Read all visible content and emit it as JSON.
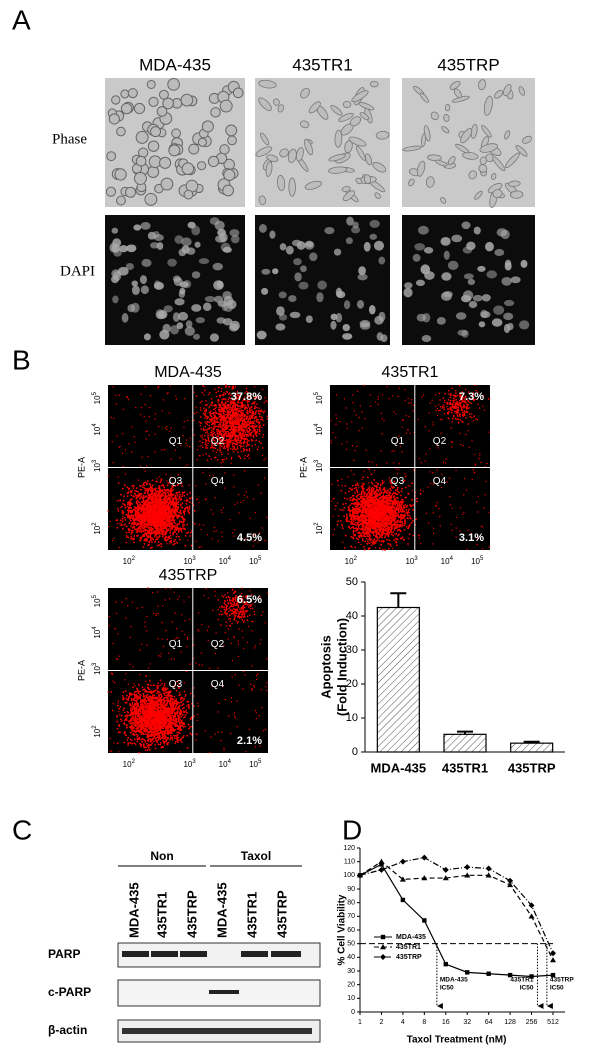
{
  "panel_labels": [
    "A",
    "B",
    "C",
    "D"
  ],
  "panel_a": {
    "columns": [
      "MDA-435",
      "435TR1",
      "435TRP"
    ],
    "rows": [
      "Phase",
      "DAPI"
    ]
  },
  "panel_b": {
    "flow_plots": [
      {
        "title": "MDA-435",
        "upper_right": "37.8%",
        "lower_right": "4.5%"
      },
      {
        "title": "435TR1",
        "upper_right": "7.3%",
        "lower_right": "3.1%"
      },
      {
        "title": "435TRP",
        "upper_right": "6.5%",
        "lower_right": "2.1%"
      }
    ],
    "quadrants": [
      "Q1",
      "Q2",
      "Q3",
      "Q4"
    ],
    "y_axis_label": "PE-A",
    "ticks": [
      {
        "base": "10",
        "exp": "2"
      },
      {
        "base": "10",
        "exp": "3"
      },
      {
        "base": "10",
        "exp": "4"
      },
      {
        "base": "10",
        "exp": "5"
      }
    ]
  },
  "panel_c": {
    "groups": [
      "Non",
      "Taxol"
    ],
    "lanes": [
      "MDA-435",
      "435TR1",
      "435TRP",
      "MDA-435",
      "435TR1",
      "435TRP"
    ],
    "rows": [
      "PARP",
      "c-PARP",
      "β-actin"
    ]
  },
  "chart_data": [
    {
      "type": "bar",
      "ylabel": [
        "Apoptosis",
        "(Fold Induction)"
      ],
      "categories": [
        "MDA-435",
        "435TR1",
        "435TRP"
      ],
      "values": [
        42.5,
        5.2,
        2.6
      ],
      "errors": [
        4.2,
        0.8,
        0.4
      ],
      "ylim": [
        0,
        50
      ],
      "yticks": [
        0,
        10,
        20,
        30,
        40,
        50
      ],
      "color": "#ffffff",
      "pattern": "hatch"
    },
    {
      "type": "line",
      "xscale": "log2",
      "x": [
        1,
        2,
        4,
        8,
        16,
        32,
        64,
        128,
        256,
        512
      ],
      "xlim": [
        1,
        512
      ],
      "xticks": [
        1,
        2,
        4,
        8,
        16,
        32,
        64,
        128,
        256,
        512
      ],
      "ylim": [
        0,
        120
      ],
      "yticks": [
        0,
        10,
        20,
        30,
        40,
        50,
        60,
        70,
        80,
        90,
        100,
        110,
        120
      ],
      "ylabel": "% Cell Viability",
      "xlabel": "Taxol Treatment (nM)",
      "hline": 50,
      "series": [
        {
          "name": "MDA-435",
          "color": "#000000",
          "marker": "square",
          "dash": "none",
          "values": [
            100,
            108,
            82,
            67,
            35,
            29,
            28,
            27,
            26,
            27
          ]
        },
        {
          "name": "435TR1",
          "color": "#000000",
          "marker": "triangle",
          "dash": "5 3",
          "values": [
            100,
            110,
            97,
            98,
            98,
            100,
            100,
            93,
            70,
            38
          ]
        },
        {
          "name": "435TRP",
          "color": "#000000",
          "marker": "diamond",
          "dash": "6 2 1 2",
          "values": [
            100,
            104,
            110,
            113,
            104,
            106,
            105,
            96,
            78,
            43
          ]
        }
      ],
      "ic50": [
        {
          "x": 12,
          "label": [
            "MDA-435",
            "IC50"
          ]
        },
        {
          "x": 310,
          "label": [
            "435TR1",
            "IC50"
          ]
        },
        {
          "x": 420,
          "label": [
            "435TRP",
            "IC50"
          ]
        }
      ]
    }
  ]
}
